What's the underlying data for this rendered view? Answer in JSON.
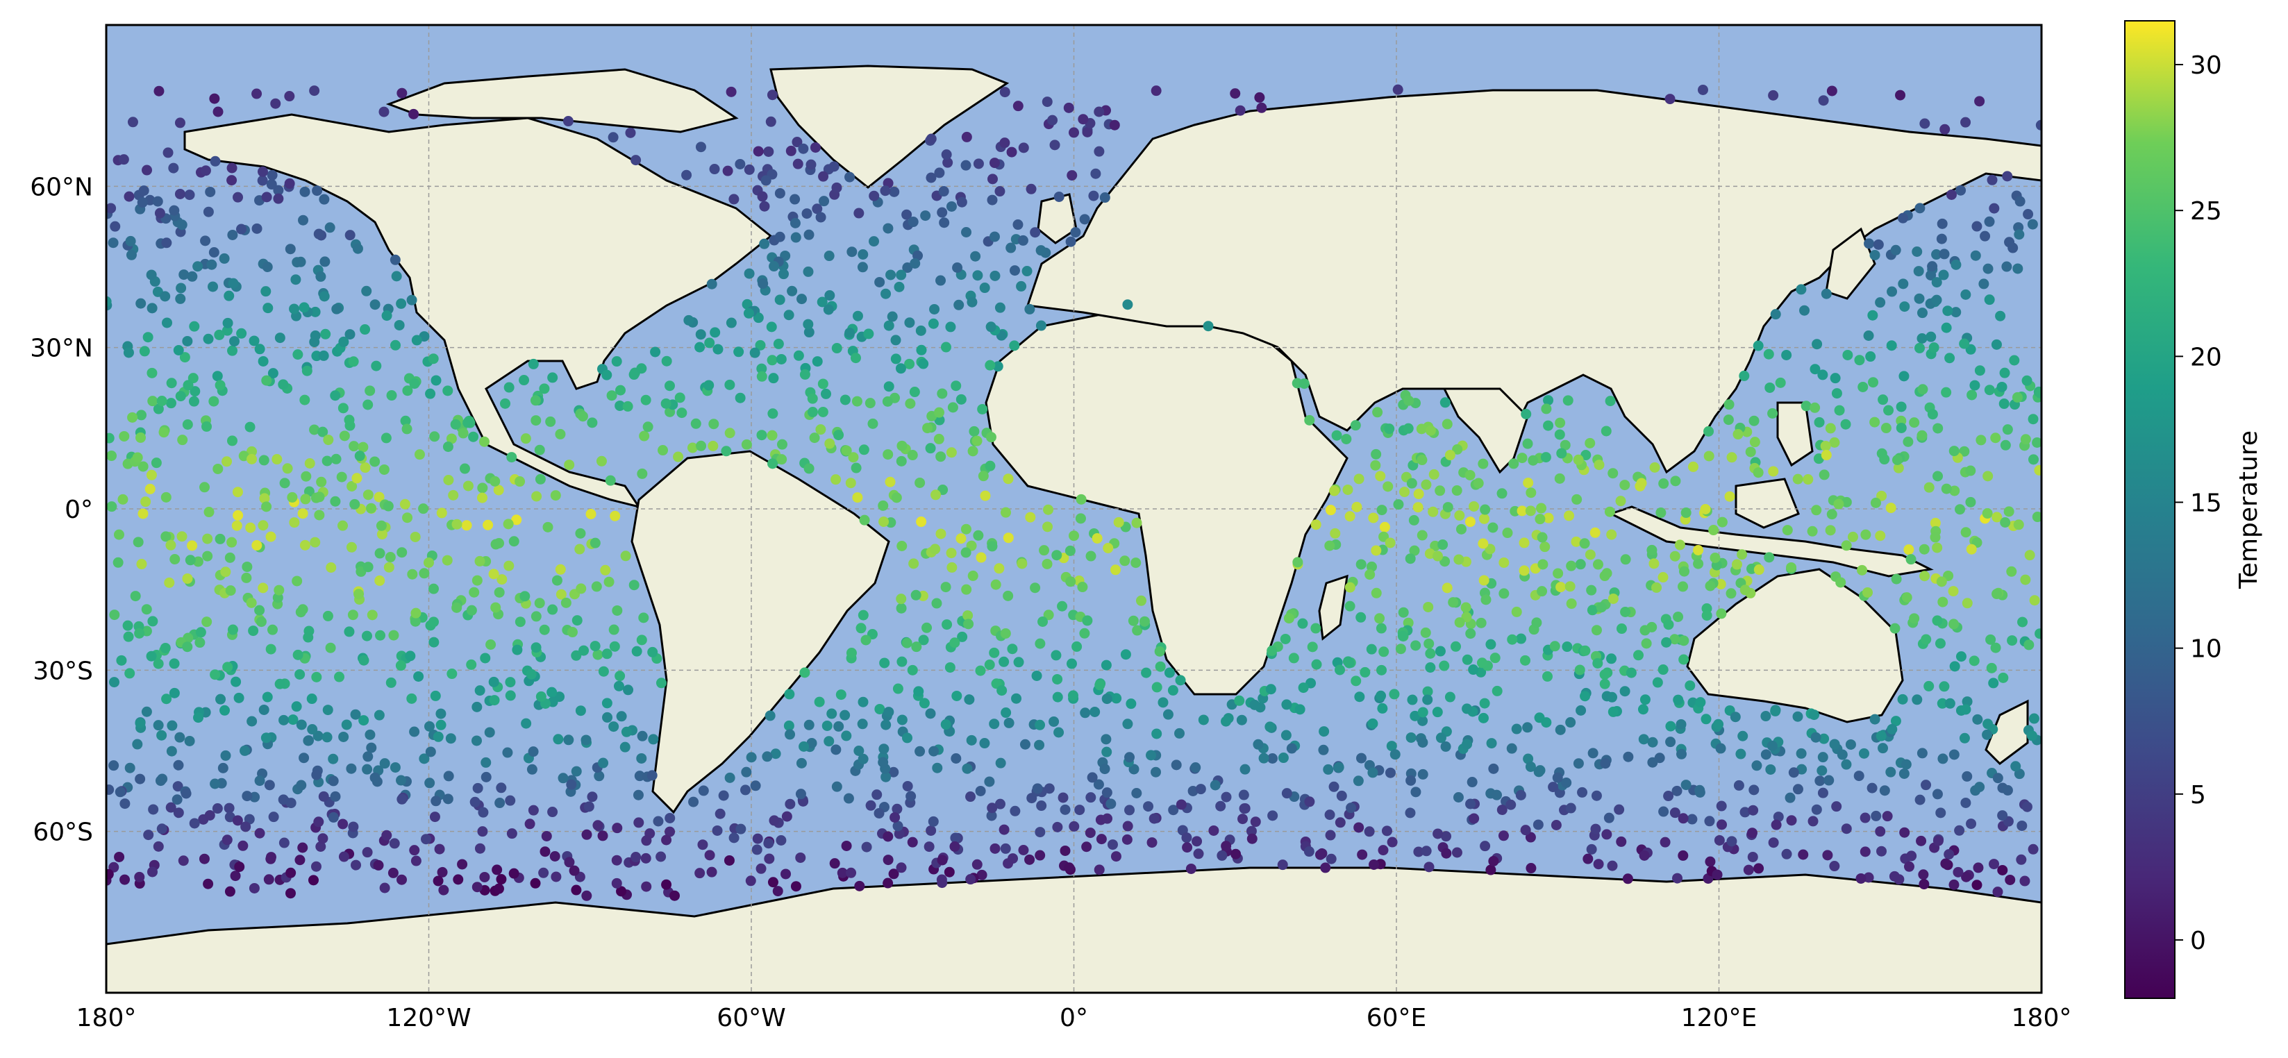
{
  "title": "",
  "projection": "PlateCarree",
  "extent": {
    "lon": [
      -180,
      180
    ],
    "lat": [
      -90,
      90
    ]
  },
  "colors": {
    "ocean": "#97b6e1",
    "land": "#efefdb",
    "coastline": "#000000",
    "borders": "#000000",
    "gridlines": "#9a9a9a",
    "colormap": "viridis"
  },
  "gridlines": true,
  "x_ticks": [
    {
      "value": -180,
      "label": "180°"
    },
    {
      "value": -120,
      "label": "120°W"
    },
    {
      "value": -60,
      "label": "60°W"
    },
    {
      "value": 0,
      "label": "0°"
    },
    {
      "value": 60,
      "label": "60°E"
    },
    {
      "value": 120,
      "label": "120°E"
    },
    {
      "value": 180,
      "label": "180°"
    }
  ],
  "y_ticks": [
    {
      "value": 60,
      "label": "60°N"
    },
    {
      "value": 30,
      "label": "30°N"
    },
    {
      "value": 0,
      "label": "0°"
    },
    {
      "value": -30,
      "label": "30°S"
    },
    {
      "value": -60,
      "label": "60°S"
    }
  ],
  "colorbar": {
    "label": "Temperature",
    "range": [
      -2,
      31.5
    ],
    "ticks": [
      0,
      5,
      10,
      15,
      20,
      25,
      30
    ],
    "tick_labels": [
      "0",
      "5",
      "10",
      "15",
      "20",
      "25",
      "30"
    ]
  },
  "chart_data": {
    "type": "scatter",
    "description_of_values": "ocean surface temperature by lon/lat",
    "xlim": [
      -180,
      180
    ],
    "ylim": [
      -90,
      90
    ],
    "temperature_by_latitude_band": [
      {
        "lat": 75,
        "temperature": 3
      },
      {
        "lat": 60,
        "temperature": 6
      },
      {
        "lat": 45,
        "temperature": 12
      },
      {
        "lat": 30,
        "temperature": 19
      },
      {
        "lat": 15,
        "temperature": 25
      },
      {
        "lat": 0,
        "temperature": 28
      },
      {
        "lat": -15,
        "temperature": 27
      },
      {
        "lat": -30,
        "temperature": 21
      },
      {
        "lat": -45,
        "temperature": 13
      },
      {
        "lat": -60,
        "temperature": 4
      },
      {
        "lat": -70,
        "temperature": 0
      }
    ],
    "sample_points": [
      [
        -170,
        55,
        5
      ],
      [
        -150,
        45,
        11
      ],
      [
        -130,
        38,
        13
      ],
      [
        -160,
        20,
        24
      ],
      [
        -140,
        5,
        27
      ],
      [
        -120,
        -10,
        28
      ],
      [
        -100,
        -20,
        25
      ],
      [
        -150,
        -35,
        19
      ],
      [
        -130,
        -50,
        10
      ],
      [
        -110,
        -60,
        4
      ],
      [
        -40,
        55,
        5
      ],
      [
        -35,
        40,
        15
      ],
      [
        -50,
        25,
        22
      ],
      [
        -30,
        10,
        26
      ],
      [
        -20,
        -15,
        27
      ],
      [
        -30,
        -30,
        22
      ],
      [
        -40,
        -45,
        14
      ],
      [
        -30,
        -62,
        1
      ],
      [
        10,
        38,
        16
      ],
      [
        25,
        34,
        17
      ],
      [
        0,
        -5,
        27
      ],
      [
        10,
        -40,
        15
      ],
      [
        20,
        -55,
        3
      ],
      [
        70,
        10,
        29
      ],
      [
        80,
        -10,
        29
      ],
      [
        70,
        -35,
        20
      ],
      [
        90,
        -50,
        9
      ],
      [
        140,
        10,
        30
      ],
      [
        150,
        -5,
        29
      ],
      [
        160,
        30,
        21
      ],
      [
        140,
        40,
        13
      ],
      [
        170,
        -40,
        17
      ],
      [
        150,
        -60,
        3
      ],
      [
        110,
        -62,
        2
      ],
      [
        0,
        70,
        3
      ]
    ]
  }
}
